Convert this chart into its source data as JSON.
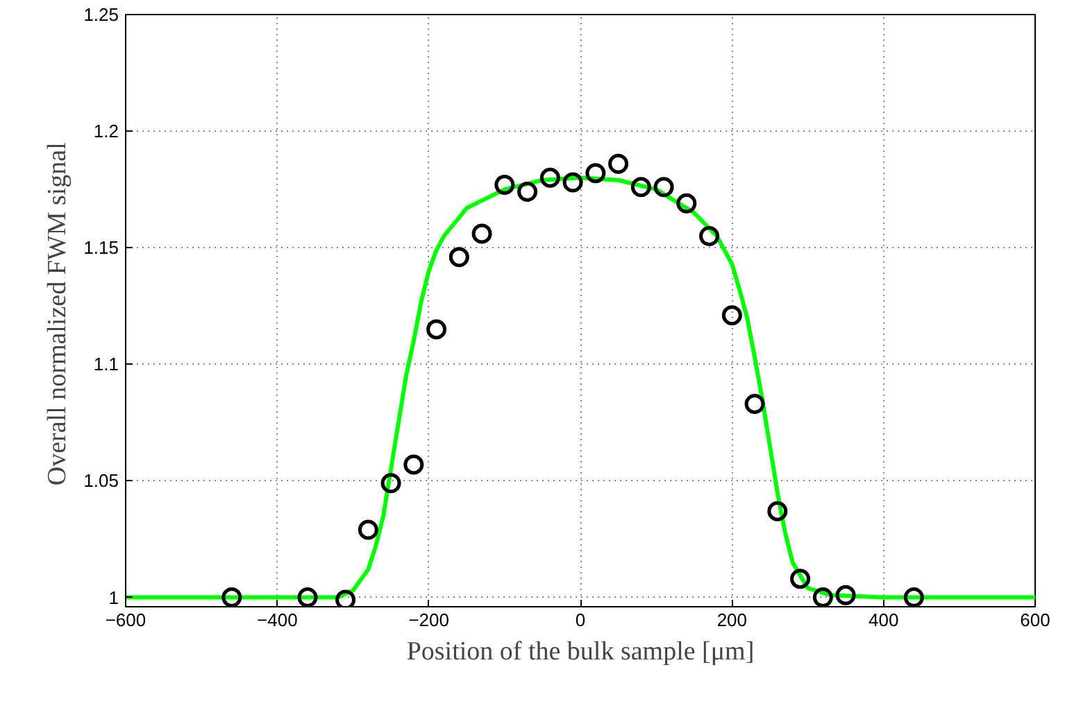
{
  "chart_data": {
    "type": "scatter",
    "xlabel": "Position of the bulk sample [μm]",
    "ylabel": "Overall normalized  FWM signal",
    "xlim": [
      -600,
      600
    ],
    "xticks": [
      -600,
      -400,
      -200,
      0,
      200,
      400,
      600
    ],
    "ylim": [
      0.996,
      1.25
    ],
    "yticks": [
      1,
      1.05,
      1.1,
      1.15,
      1.2,
      1.25
    ],
    "grid": true,
    "marker": "circle",
    "series": [
      {
        "color": "#000000",
        "x": [
          -460,
          -360,
          -310,
          -280,
          -250,
          -220,
          -190,
          -160,
          -130,
          -100,
          -70,
          -40,
          -10,
          20,
          50,
          80,
          110,
          140,
          170,
          200,
          230,
          260,
          290,
          320,
          350,
          440
        ],
        "values": [
          1.0,
          1.0,
          0.999,
          1.029,
          1.049,
          1.057,
          1.115,
          1.146,
          1.156,
          1.177,
          1.174,
          1.18,
          1.178,
          1.182,
          1.186,
          1.176,
          1.176,
          1.169,
          1.155,
          1.121,
          1.083,
          1.037,
          1.008,
          1.0,
          1.001,
          1.0
        ]
      },
      {
        "type": "line",
        "color": "#00ff00",
        "marker": "none",
        "x": [
          -600,
          -320,
          -300,
          -280,
          -270,
          -260,
          -250,
          -240,
          -230,
          -220,
          -210,
          -200,
          -190,
          -180,
          -150,
          -100,
          -50,
          0,
          50,
          100,
          150,
          180,
          200,
          210,
          220,
          230,
          240,
          250,
          260,
          270,
          280,
          300,
          330,
          400,
          600
        ],
        "values": [
          1.0,
          1.0,
          1.003,
          1.012,
          1.022,
          1.035,
          1.055,
          1.075,
          1.095,
          1.11,
          1.127,
          1.14,
          1.149,
          1.155,
          1.167,
          1.175,
          1.179,
          1.18,
          1.179,
          1.175,
          1.165,
          1.155,
          1.143,
          1.132,
          1.12,
          1.103,
          1.085,
          1.065,
          1.045,
          1.028,
          1.015,
          1.004,
          1.001,
          1.0,
          1.0
        ]
      }
    ]
  }
}
